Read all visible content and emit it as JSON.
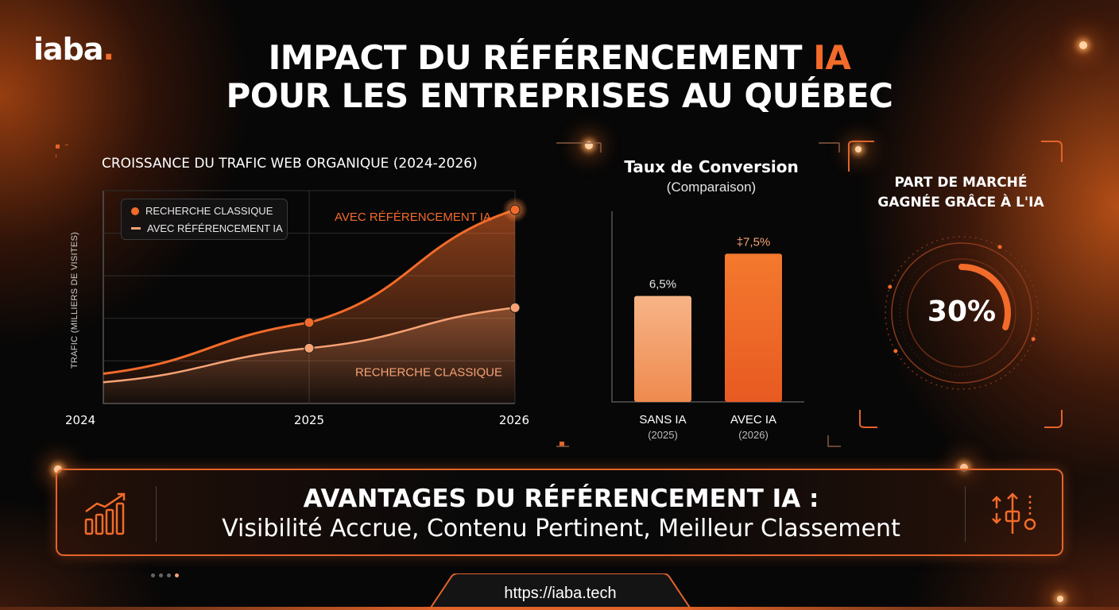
{
  "brand": {
    "logo_text": "iaba",
    "logo_dot": ".",
    "accent": "#f26b2a",
    "accent_light": "#f6a274",
    "background": "#070707"
  },
  "header": {
    "title_line1_main": "IMPACT DU RÉFÉRENCEMENT",
    "title_line1_highlight": "IA",
    "title_line2": "POUR LES ENTREPRISES AU QUÉBEC"
  },
  "chart_data": [
    {
      "type": "line",
      "title": "CROISSANCE DU TRAFIC WEB ORGANIQUE (2024-2026)",
      "xlabel": "",
      "ylabel": "TRAFIC (MILLIERS DE VISITES)",
      "x": [
        "2024",
        "2025",
        "2026"
      ],
      "ylim": [
        0,
        100
      ],
      "grid": true,
      "legend_position": "top-left",
      "legend": [
        "RECHERCHE CLASSIQUE",
        "AVEC RÉFÉRENCEMENT IA"
      ],
      "series": [
        {
          "name": "RECHERCHE CLASSIQUE",
          "values": [
            10,
            26,
            45
          ],
          "color": "#f6a274"
        },
        {
          "name": "AVEC RÉFÉRENCEMENT IA",
          "values": [
            14,
            38,
            91
          ],
          "color": "#f26b2a"
        }
      ],
      "annotations": [
        {
          "text": "AVEC RÉFÉRENCEMENT IA",
          "series": "AVEC RÉFÉRENCEMENT IA"
        },
        {
          "text": "RECHERCHE CLASSIQUE",
          "series": "RECHERCHE CLASSIQUE"
        }
      ]
    },
    {
      "type": "bar",
      "title": "Taux de Conversion",
      "subtitle": "(Comparaison)",
      "categories": [
        "SANS IA",
        "AVEC IA"
      ],
      "category_sublabels": [
        "(2025)",
        "(2026)"
      ],
      "values": [
        6.5,
        7.5
      ],
      "value_labels": [
        "6,5%",
        "‡7,5%"
      ],
      "ylim": [
        4,
        8.5
      ],
      "colors": [
        "#f4a06a",
        "#ef6a28"
      ]
    },
    {
      "type": "gauge",
      "title_line1": "PART DE MARCHÉ",
      "title_line2": "GAGNÉE GRÂCE À L'IA",
      "value": 30,
      "value_label": "30%"
    }
  ],
  "advantages": {
    "title": "AVANTAGES DU RÉFÉRENCEMENT IA :",
    "subtitle": "Visibilité Accrue, Contenu Pertinent, Meilleur Classement",
    "left_icon": "growth-chart-icon",
    "right_icon": "ranking-adjust-icon"
  },
  "footer": {
    "url": "https://iaba.tech",
    "pagination_count": 4,
    "pagination_active": 4
  }
}
